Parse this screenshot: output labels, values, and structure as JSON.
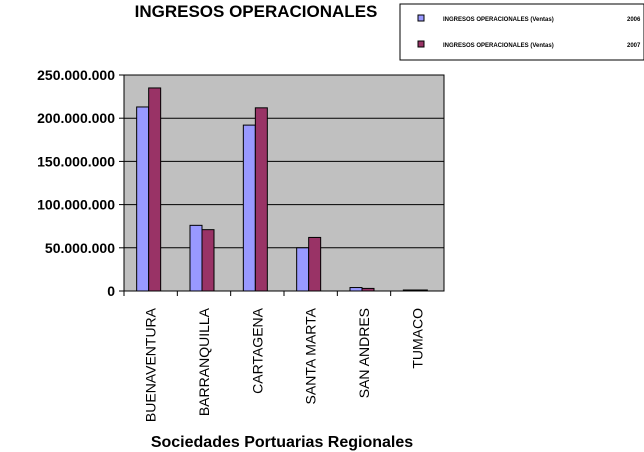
{
  "chart_data": {
    "type": "bar",
    "title": "INGRESOS OPERACIONALES",
    "xlabel": "Sociedades Portuarias Regionales",
    "ylabel": "",
    "categories": [
      "BUENAVENTURA",
      "BARRANQUILLA",
      "CARTAGENA",
      "SANTA MARTA",
      "SAN ANDRES",
      "TUMACO"
    ],
    "series": [
      {
        "name": "INGRESOS OPERACIONALES (Ventas)",
        "year": "2006",
        "color": "#9999ff",
        "values": [
          213000000,
          76000000,
          192000000,
          50000000,
          4000000,
          1000000
        ]
      },
      {
        "name": "INGRESOS OPERACIONALES (Ventas)",
        "year": "2007",
        "color": "#993366",
        "values": [
          235000000,
          71000000,
          212000000,
          62000000,
          3000000,
          1000000
        ]
      }
    ],
    "y_ticks": [
      "250.000.000",
      "200.000.000",
      "150.000.000",
      "100.000.000",
      "50.000.000",
      "0"
    ],
    "y_tick_values": [
      250000000,
      200000000,
      150000000,
      100000000,
      50000000,
      0
    ],
    "ylim": [
      0,
      250000000
    ],
    "grid": true,
    "plot_background": "#c0c0c0",
    "legend_position": "top-right"
  }
}
